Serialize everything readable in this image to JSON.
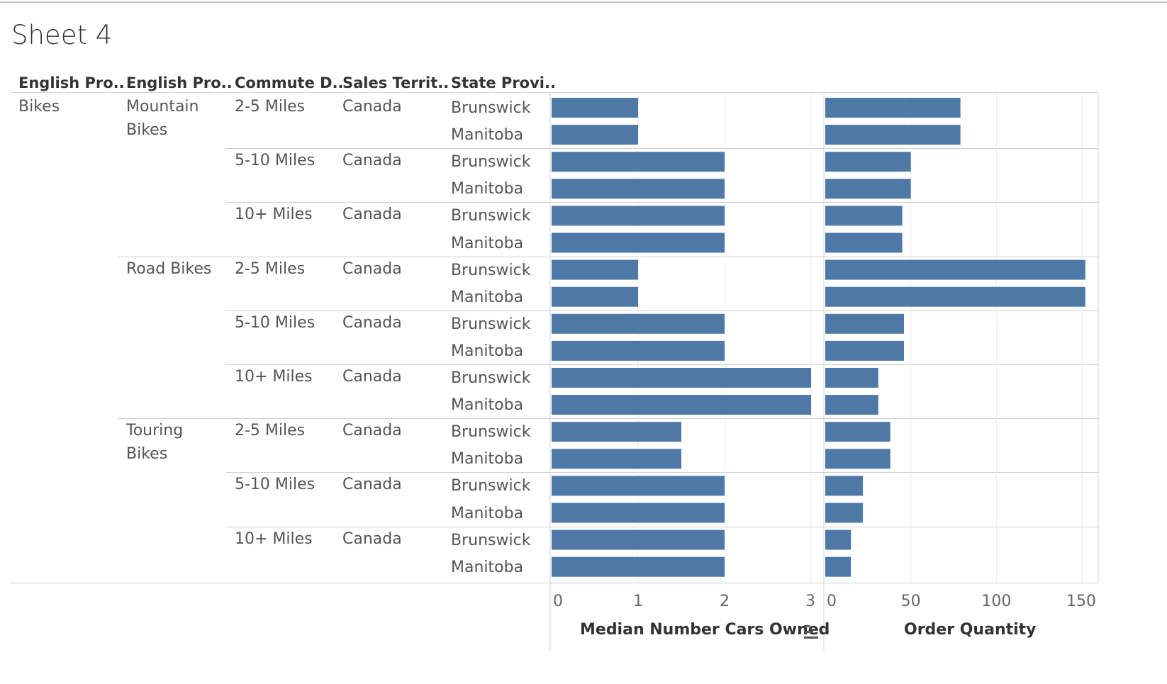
{
  "sheet_title": "Sheet 4",
  "headers": [
    "English Pro..",
    "English Pro..",
    "Commute D..",
    "Sales Territ..",
    "State Provi.."
  ],
  "rows_text": {
    "category": "Bikes",
    "subcategories": [
      {
        "label": "Mountain Bikes"
      },
      {
        "label": "Road Bikes"
      },
      {
        "label": "Touring Bikes"
      }
    ],
    "commute": [
      "2-5 Miles",
      "5-10 Miles",
      "10+ Miles"
    ],
    "territory": "Canada",
    "states": [
      "Brunswick",
      "Manitoba"
    ]
  },
  "chart_data": [
    {
      "type": "bar",
      "orientation": "horizontal",
      "xlabel": "Median Number Cars Owned",
      "xlim": [
        0,
        3
      ],
      "ticks": [
        "0",
        "1",
        "2",
        "3"
      ],
      "values": [
        1,
        1,
        2,
        2,
        2,
        2,
        1,
        1,
        2,
        2,
        3,
        3,
        1.5,
        1.5,
        2,
        2,
        2,
        2
      ],
      "bar_color": "#4e79a7",
      "sort_icon": "sort-descending-icon"
    },
    {
      "type": "bar",
      "orientation": "horizontal",
      "xlabel": "Order Quantity",
      "xlim": [
        0,
        150
      ],
      "ticks": [
        "0",
        "50",
        "100",
        "150"
      ],
      "values": [
        79,
        79,
        50,
        50,
        45,
        45,
        152,
        152,
        46,
        46,
        31,
        31,
        38,
        38,
        22,
        22,
        15,
        15
      ],
      "bar_color": "#4e79a7"
    }
  ]
}
